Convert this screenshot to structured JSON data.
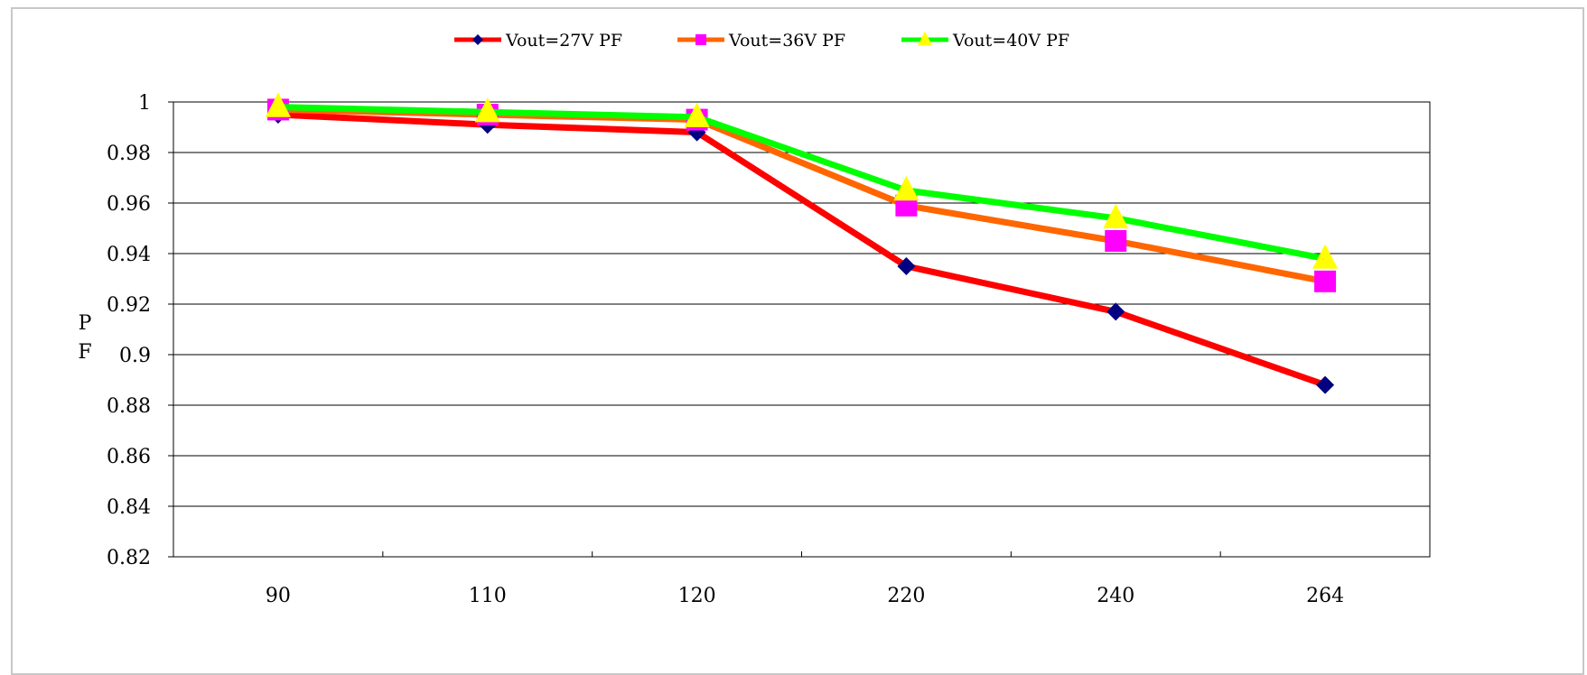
{
  "chart_data": {
    "type": "line",
    "title": "",
    "xlabel": "",
    "ylabel": "PF",
    "categories": [
      "90",
      "110",
      "120",
      "220",
      "240",
      "264"
    ],
    "ylim": [
      0.82,
      1
    ],
    "yticks": [
      "0.82",
      "0.84",
      "0.86",
      "0.88",
      "0.9",
      "0.92",
      "0.94",
      "0.96",
      "0.98",
      "1"
    ],
    "grid": true,
    "legend_position": "top",
    "series": [
      {
        "name": "Vout=27V PF",
        "values": [
          0.995,
          0.991,
          0.988,
          0.935,
          0.917,
          0.888
        ],
        "line_color": "#ff0000",
        "marker": "diamond",
        "marker_color": "#000080"
      },
      {
        "name": "Vout=36V PF",
        "values": [
          0.997,
          0.995,
          0.993,
          0.959,
          0.945,
          0.929
        ],
        "line_color": "#ff6600",
        "marker": "square",
        "marker_color": "#ff00ff"
      },
      {
        "name": "Vout=40V PF",
        "values": [
          0.998,
          0.996,
          0.994,
          0.965,
          0.954,
          0.938
        ],
        "line_color": "#00ff00",
        "marker": "triangle",
        "marker_color": "#ffff00"
      }
    ]
  }
}
